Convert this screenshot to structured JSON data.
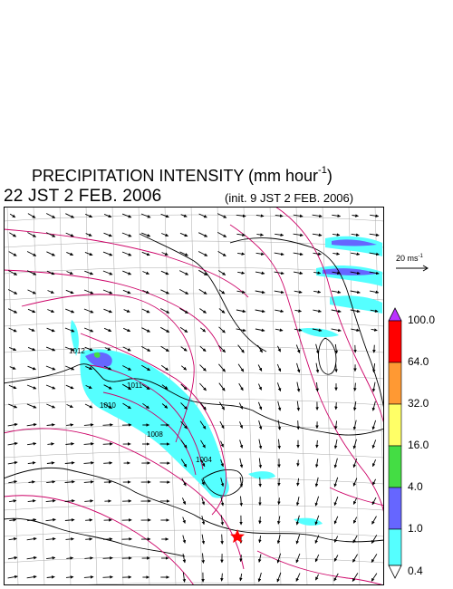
{
  "title": {
    "main": "PRECIPITATION INTENSITY (mm hour",
    "exponent": "-1",
    "close": ")"
  },
  "valid_time": "22 JST 2 FEB. 2006",
  "init_time": "(init. 9 JST 2 FEB. 2006)",
  "wind_reference": {
    "label": "20 ms",
    "exponent": "-1"
  },
  "colorbar": {
    "levels": [
      "0.4",
      "1.0",
      "4.0",
      "16.0",
      "32.0",
      "64.0",
      "100.0"
    ],
    "colors": [
      "#55ffff",
      "#6666ff",
      "#44dd44",
      "#ffff66",
      "#ff9933",
      "#ff0000",
      "#bb33ff"
    ]
  },
  "pressure_labels": [
    "1012",
    "1011",
    "1010",
    "1008",
    "1004"
  ],
  "colors": {
    "isobar": "#cc0066",
    "coastline": "#000000",
    "grid": "#aaaaaa",
    "marker": "#ff0000"
  },
  "icons": {
    "location_marker": "red-star-icon"
  }
}
